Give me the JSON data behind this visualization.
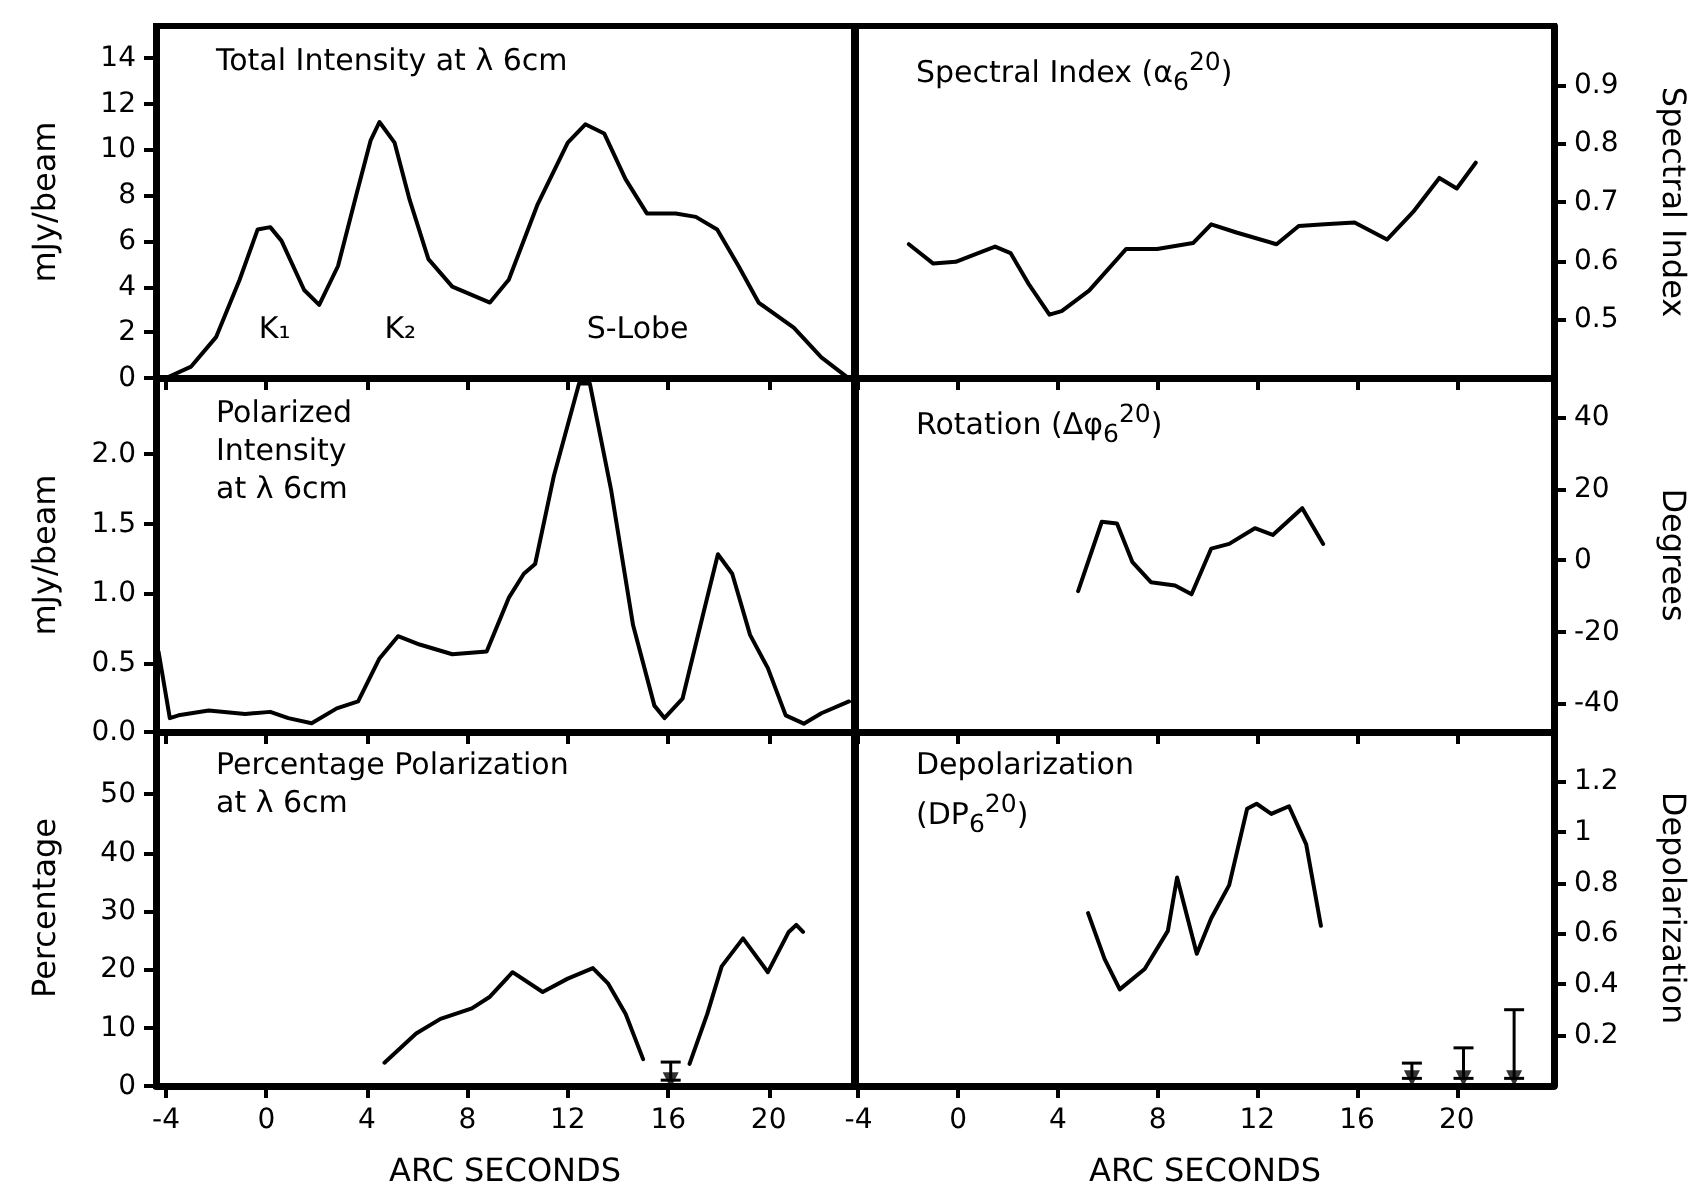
{
  "chart_data": [
    {
      "type": "line",
      "title": "Total Intensity at λ 6cm",
      "ylabel": "mJy/beam",
      "xlim": [
        -4.4,
        23.4
      ],
      "xticks": [
        -4,
        0,
        4,
        8,
        12,
        16,
        20
      ],
      "ylim": [
        0,
        15.4
      ],
      "yticks": [
        0,
        2,
        4,
        6,
        8,
        10,
        12,
        14
      ],
      "tick_labels": "y",
      "annotations": [
        "K₁",
        "K₂",
        "S-Lobe"
      ],
      "series": [
        {
          "color": "#000000",
          "x": [
            -4,
            -3,
            -2,
            -1.07,
            -0.35,
            0.15,
            0.6,
            1.5,
            2.1,
            2.85,
            3.6,
            4.15,
            4.5,
            5.1,
            5.7,
            6.45,
            7.4,
            8.9,
            9.65,
            10.8,
            12,
            12.7,
            13.45,
            14.3,
            15.15,
            16.3,
            17.1,
            17.95,
            18.8,
            19.6,
            21,
            22.1,
            23.1
          ],
          "values": [
            0,
            0.5,
            1.8,
            4.3,
            6.5,
            6.6,
            6,
            3.85,
            3.2,
            4.9,
            8.1,
            10.4,
            11.2,
            10.3,
            7.8,
            5.2,
            4,
            3.3,
            4.3,
            7.6,
            10.3,
            11.1,
            10.7,
            8.7,
            7.2,
            7.2,
            7.05,
            6.5,
            4.9,
            3.3,
            2.2,
            0.9,
            0.06
          ]
        }
      ]
    },
    {
      "type": "line",
      "title": "Spectral Index (α$_{6}$$^{20}$)",
      "ylabel": "Spectral Index",
      "xlim": [
        -4.1,
        23.9
      ],
      "xticks": [
        -4,
        0,
        4,
        8,
        12,
        16,
        20
      ],
      "ylim": [
        0.4,
        1.0
      ],
      "yticks": [
        0.5,
        0.6,
        0.7,
        0.8,
        0.9
      ],
      "tick_labels": "y",
      "series": [
        {
          "color": "#000000",
          "x": [
            -1.98,
            -1,
            -0.1,
            1.48,
            2.1,
            2.83,
            3.66,
            4.15,
            5.25,
            6.74,
            7.98,
            9.42,
            10.15,
            11.16,
            12.77,
            13.66,
            14.7,
            15.9,
            17.2,
            18.25,
            19.3,
            20,
            20.76
          ],
          "values": [
            0.628,
            0.595,
            0.598,
            0.624,
            0.613,
            0.56,
            0.508,
            0.514,
            0.549,
            0.62,
            0.62,
            0.63,
            0.662,
            0.648,
            0.628,
            0.659,
            0.662,
            0.665,
            0.636,
            0.683,
            0.741,
            0.723,
            0.767
          ]
        }
      ]
    },
    {
      "type": "line",
      "title": "Polarized\nIntensity\nat λ 6cm",
      "ylabel": "mJy/beam",
      "xlim": [
        -4.4,
        23.4
      ],
      "xticks": [
        -4,
        0,
        4,
        8,
        12,
        16,
        20
      ],
      "ylim": [
        0,
        2.55
      ],
      "yticks": [
        {
          "value": 0,
          "label": "0.0"
        },
        {
          "value": 0.5,
          "label": "0.5"
        },
        {
          "value": 1,
          "label": "1.0"
        },
        {
          "value": 1.5,
          "label": "1.5"
        },
        {
          "value": 2,
          "label": "2.0"
        }
      ],
      "tick_labels": "y",
      "series": [
        {
          "color": "#000000",
          "x": [
            -4.3,
            -3.85,
            -3.5,
            -2.3,
            -0.85,
            0.15,
            0.87,
            1.8,
            2.8,
            3.65,
            4.5,
            5.24,
            6.1,
            7.4,
            8.77,
            9.66,
            10.25,
            10.7,
            11.44,
            12.45,
            12.88,
            13.73,
            14.6,
            15.45,
            15.85,
            16.57,
            17.42,
            17.98,
            18.55,
            19.26,
            19.97,
            20.68,
            21.4,
            22.1,
            23.2
          ],
          "values": [
            0.58,
            0.1,
            0.12,
            0.155,
            0.13,
            0.145,
            0.1,
            0.063,
            0.17,
            0.22,
            0.53,
            0.69,
            0.63,
            0.56,
            0.58,
            0.97,
            1.14,
            1.21,
            1.84,
            2.51,
            2.51,
            1.74,
            0.77,
            0.19,
            0.1,
            0.24,
            0.87,
            1.28,
            1.14,
            0.7,
            0.46,
            0.12,
            0.06,
            0.135,
            0.22
          ]
        }
      ]
    },
    {
      "type": "line",
      "title": "Rotation (Δφ$_{6}$$^{20}$)",
      "ylabel": "Degrees",
      "xlim": [
        -4.1,
        23.9
      ],
      "xticks": [
        -4,
        0,
        4,
        8,
        12,
        16,
        20
      ],
      "ylim": [
        -48,
        51
      ],
      "yticks": [
        -40,
        -20,
        0,
        20,
        40
      ],
      "tick_labels": "y",
      "series": [
        {
          "color": "#000000",
          "x": [
            4.81,
            5.76,
            6.37,
            6.99,
            7.73,
            8.7,
            9.36,
            10.15,
            10.87,
            11.9,
            12.62,
            13.8,
            14.64
          ],
          "values": [
            -8.6,
            10.8,
            10.3,
            -0.5,
            -6.1,
            -7,
            -9.5,
            3.3,
            4.6,
            9,
            7.1,
            14.6,
            4.6
          ]
        }
      ]
    },
    {
      "type": "line",
      "title": "Percentage Polarization\nat λ 6cm",
      "ylabel": "Percentage",
      "xlabel": "ARC SECONDS",
      "xlim": [
        -4.4,
        23.4
      ],
      "xticks": [
        -4,
        0,
        4,
        8,
        12,
        16,
        20
      ],
      "ylim": [
        0,
        61
      ],
      "yticks": [
        0,
        10,
        20,
        30,
        40,
        50
      ],
      "series": [
        {
          "color": "#000000",
          "x": [
            4.7,
            5.96,
            6.93,
            8.18,
            8.9,
            9.8,
            11,
            12,
            13,
            13.6,
            14.3,
            15
          ],
          "values": [
            4,
            9,
            11.5,
            13.3,
            15.3,
            19.5,
            16.1,
            18.4,
            20.2,
            17.6,
            12.4,
            4.6
          ]
        },
        {
          "color": "#000000",
          "x": [
            16.85,
            17.56,
            18.13,
            18.98,
            19.97,
            20.8,
            21.1,
            21.37
          ],
          "values": [
            3.8,
            12.4,
            20.5,
            25.3,
            19.5,
            26.4,
            27.6,
            26.4
          ]
        },
        {
          "type": "scatter",
          "marker": "triangle",
          "color": "#000000",
          "x": [
            16.1
          ],
          "values": [
            1
          ],
          "errors": [
            [
              1,
              4.1
            ]
          ]
        }
      ]
    },
    {
      "type": "line",
      "title": "Depolarization\n(DP$_{6}$$^{20}$)",
      "ylabel": "Depolarization",
      "xlabel": "ARC SECONDS",
      "xlim": [
        -4.1,
        23.9
      ],
      "xticks": [
        -4,
        0,
        4,
        8,
        12,
        16,
        20
      ],
      "ylim": [
        0,
        1.4
      ],
      "yticks": [
        0.2,
        0.4,
        0.6,
        0.8,
        1.0,
        1.2
      ],
      "series": [
        {
          "color": "#000000",
          "x": [
            5.21,
            5.87,
            6.48,
            7.48,
            8.41,
            8.78,
            9.57,
            10.15,
            10.87,
            11.59,
            11.97,
            12.56,
            13.27,
            13.96,
            14.55
          ],
          "values": [
            0.68,
            0.5,
            0.38,
            0.46,
            0.61,
            0.82,
            0.52,
            0.66,
            0.79,
            1.09,
            1.11,
            1.07,
            1.1,
            0.95,
            0.63
          ]
        },
        {
          "type": "scatter",
          "marker": "triangle",
          "color": "#000000",
          "x": [
            18.2,
            20.27,
            22.3
          ],
          "values": [
            0.03,
            0.03,
            0.03
          ],
          "errors": [
            [
              0.03,
              0.09
            ],
            [
              0.03,
              0.15
            ],
            [
              0.03,
              0.3
            ]
          ]
        }
      ]
    }
  ]
}
